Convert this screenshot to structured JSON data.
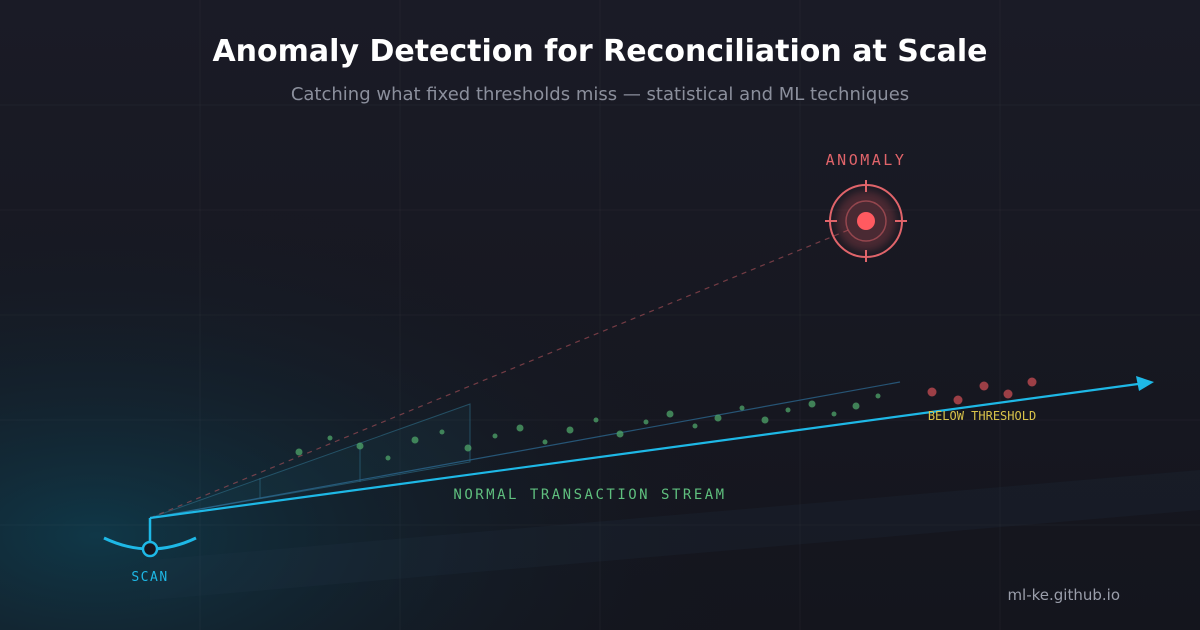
{
  "header": {
    "title": "Anomaly Detection for Reconciliation at Scale",
    "subtitle": "Catching what fixed thresholds miss — statistical and ML techniques"
  },
  "labels": {
    "anomaly": "ANOMALY",
    "below_threshold": "BELOW THRESHOLD",
    "stream": "NORMAL TRANSACTION STREAM",
    "scan": "SCAN"
  },
  "footer": {
    "site": "ml-ke.github.io"
  }
}
